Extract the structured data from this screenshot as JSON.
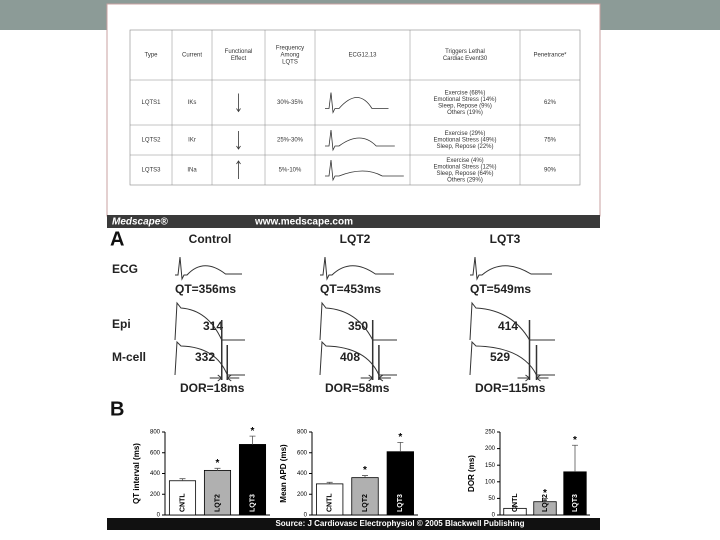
{
  "slide": {
    "table": {
      "headers": [
        [
          "Type"
        ],
        [
          "Current"
        ],
        [
          "Functional",
          "Effect"
        ],
        [
          "Frequency",
          "Among",
          "LQTS"
        ],
        [
          "ECG12,13"
        ],
        [
          "Triggers Lethal",
          "Cardiac Event30"
        ],
        [
          "Penetrance*"
        ]
      ],
      "rows": [
        {
          "type": "LQTS1",
          "current": "IKs",
          "frequency": "30%-35%",
          "triggers": [
            "Exercise (68%)",
            "Emotional Stress (14%)",
            "Sleep, Repose (9%)",
            "Others (19%)"
          ],
          "penetrance": "62%"
        },
        {
          "type": "LQTS2",
          "current": "IKr",
          "frequency": "25%-30%",
          "triggers": [
            "Exercise (29%)",
            "Emotional Stress (49%)",
            "Sleep, Repose (22%)"
          ],
          "penetrance": "75%"
        },
        {
          "type": "LQTS3",
          "current": "INa",
          "frequency": "5%-10%",
          "triggers": [
            "Exercise (4%)",
            "Emotional Stress (12%)",
            "Sleep, Repose (64%)",
            "Others (29%)"
          ],
          "penetrance": "90%"
        }
      ]
    },
    "banner": {
      "brand": "Medscape®",
      "url": "www.medscape.com"
    },
    "panel_a": {
      "label": "A",
      "columns": [
        "Control",
        "LQT2",
        "LQT3"
      ],
      "rows": [
        "ECG",
        "Epi",
        "M-cell"
      ],
      "qt": [
        "QT=356ms",
        "QT=453ms",
        "QT=549ms"
      ],
      "epi": [
        "314",
        "350",
        "414"
      ],
      "mcell": [
        "332",
        "408",
        "529"
      ],
      "dor": [
        "DOR=18ms",
        "DOR=58ms",
        "DOR=115ms"
      ]
    },
    "panel_b_label": "B",
    "source": "Source: J Cardiovasc Electrophysiol © 2005 Blackwell Publishing"
  },
  "chart_data": [
    {
      "type": "bar",
      "y_label": "QT interval (ms)",
      "categories": [
        "CNTL",
        "LQT2",
        "LQT3"
      ],
      "values": [
        330,
        430,
        680
      ],
      "errors": [
        20,
        20,
        80
      ],
      "colors": [
        "#ffffff",
        "#b0b0b0",
        "#000000"
      ],
      "markers": [
        null,
        "*",
        "*"
      ],
      "ylim": [
        0,
        800
      ],
      "yticks": [
        0,
        200,
        400,
        600,
        800
      ]
    },
    {
      "type": "bar",
      "y_label": "Mean APD (ms)",
      "categories": [
        "CNTL",
        "LQT2",
        "LQT3"
      ],
      "values": [
        300,
        360,
        610
      ],
      "errors": [
        15,
        20,
        90
      ],
      "colors": [
        "#ffffff",
        "#b0b0b0",
        "#000000"
      ],
      "markers": [
        null,
        "*",
        "*"
      ],
      "ylim": [
        0,
        800
      ],
      "yticks": [
        0,
        200,
        400,
        600,
        800
      ]
    },
    {
      "type": "bar",
      "y_label": "DOR (ms)",
      "categories": [
        "CNTL",
        "LQT2",
        "LQT3"
      ],
      "values": [
        20,
        40,
        130
      ],
      "errors": [
        5,
        10,
        80
      ],
      "colors": [
        "#ffffff",
        "#b0b0b0",
        "#000000"
      ],
      "markers": [
        null,
        "*",
        "*"
      ],
      "ylim": [
        0,
        250
      ],
      "yticks": [
        0,
        50,
        100,
        150,
        200,
        250
      ]
    }
  ]
}
